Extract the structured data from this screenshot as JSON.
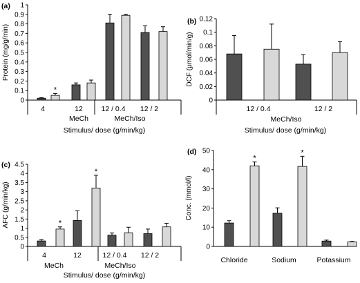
{
  "colors": {
    "dark": "#505050",
    "light": "#d8d8d8",
    "axis": "#000000",
    "error": "#000000"
  },
  "chart_data": [
    {
      "panel": "(a)",
      "type": "bar",
      "ylabel": "Protein (mg/g/min)",
      "xlabel": "Stimulus/ dose (g/min/kg)",
      "ylim": [
        0,
        1
      ],
      "yticks": [
        "0",
        "0.1",
        "0.2",
        "0.3",
        "0.4",
        "0.5",
        "0.6",
        "0.7",
        "0.8",
        "0.9",
        "1"
      ],
      "categories": [
        "4",
        "12",
        "12 / 0.4",
        "12 / 2"
      ],
      "groups": [
        "MeCh",
        "MeCh/Iso"
      ],
      "series": [
        {
          "values": [
            0.02,
            0.16,
            0.81,
            0.71
          ],
          "errors": [
            0.005,
            0.02,
            0.09,
            0.07
          ]
        },
        {
          "values": [
            0.05,
            0.18,
            0.89,
            0.72
          ],
          "errors": [
            0.02,
            0.03,
            0.01,
            0.05
          ]
        }
      ],
      "annotations": [
        {
          "category": 0,
          "series": 1,
          "text": "*"
        }
      ],
      "grid": false
    },
    {
      "panel": "(b)",
      "type": "bar",
      "ylabel": "DCF (μmol/min/g)",
      "xlabel": "Stimulus/ dose (g/min/kg)",
      "ylim": [
        0,
        0.12
      ],
      "yticks": [
        "0",
        "0.02",
        "0.04",
        "0.06",
        "0.08",
        "0.1",
        "0.12"
      ],
      "categories": [
        "12 / 0.4",
        "12 / 2"
      ],
      "groups": [
        "MeCh/Iso"
      ],
      "series": [
        {
          "values": [
            0.068,
            0.053
          ],
          "errors": [
            0.027,
            0.014
          ]
        },
        {
          "values": [
            0.075,
            0.07
          ],
          "errors": [
            0.037,
            0.016
          ]
        }
      ],
      "annotations": [],
      "grid": false
    },
    {
      "panel": "(c)",
      "type": "bar",
      "ylabel": "AFC (g/min/kg)",
      "xlabel": "Stimulus/ dose (g/min/kg)",
      "ylim": [
        0,
        4.5
      ],
      "yticks": [
        "0",
        "0.5",
        "1",
        "1.5",
        "2",
        "2.5",
        "3",
        "3.5",
        "4",
        "4.5"
      ],
      "categories": [
        "4",
        "12",
        "12 / 0.4",
        "12 / 2"
      ],
      "groups": [
        "MeCh",
        "MeCh/Iso"
      ],
      "series": [
        {
          "values": [
            0.3,
            1.42,
            0.62,
            0.7
          ],
          "errors": [
            0.08,
            0.53,
            0.12,
            0.25
          ]
        },
        {
          "values": [
            0.95,
            3.2,
            0.75,
            1.07
          ],
          "errors": [
            0.12,
            0.7,
            0.3,
            0.2
          ]
        }
      ],
      "annotations": [
        {
          "category": 0,
          "series": 1,
          "text": "*"
        },
        {
          "category": 1,
          "series": 1,
          "text": "*"
        }
      ],
      "grid": false
    },
    {
      "panel": "(d)",
      "type": "bar",
      "ylabel": "Conc. (mmol/l)",
      "xlabel": "",
      "ylim": [
        0,
        50
      ],
      "yticks": [
        "0",
        "10",
        "20",
        "30",
        "40",
        "50"
      ],
      "categories": [
        "Chloride",
        "Sodium",
        "Potassium"
      ],
      "groups": [],
      "series": [
        {
          "values": [
            12.2,
            17.3,
            2.8
          ],
          "errors": [
            1.2,
            2.8,
            0.5
          ]
        },
        {
          "values": [
            42,
            41.7,
            2.4
          ],
          "errors": [
            2.0,
            5.3,
            0.2
          ]
        }
      ],
      "annotations": [
        {
          "category": 0,
          "series": 1,
          "text": "*"
        },
        {
          "category": 1,
          "series": 1,
          "text": "*"
        }
      ],
      "grid": false
    }
  ]
}
